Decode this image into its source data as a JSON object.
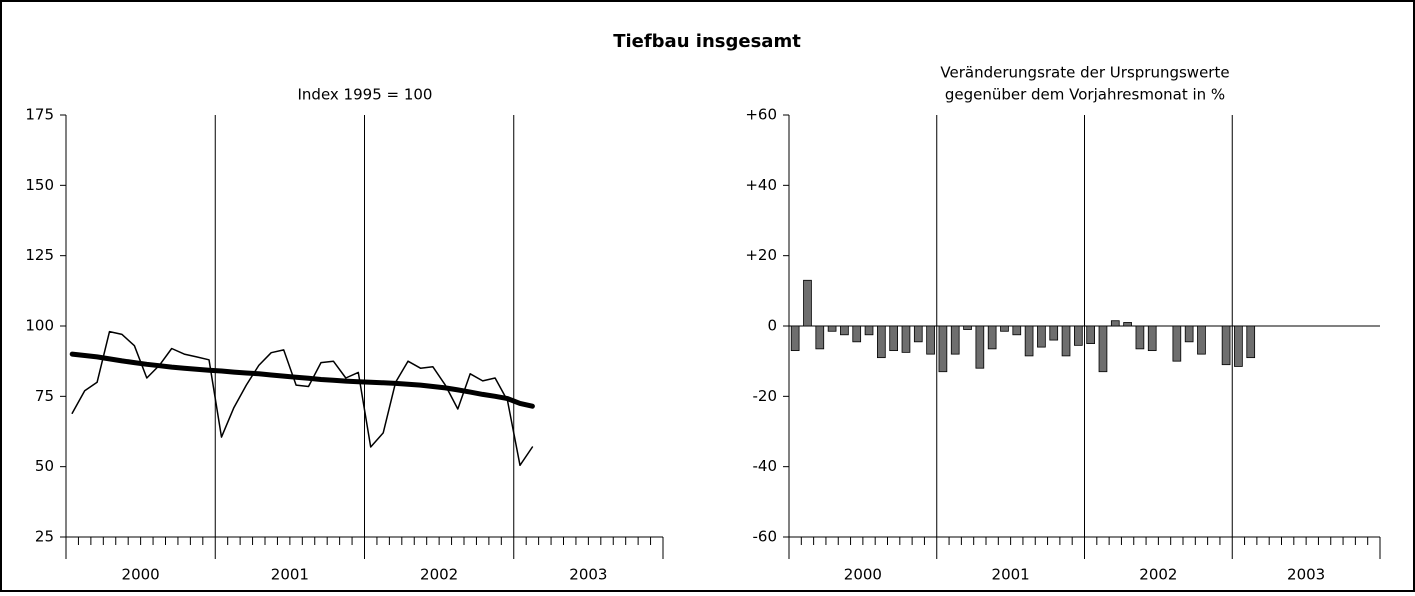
{
  "title": "Tiefbau insgesamt",
  "chart_data": [
    {
      "type": "line",
      "subtitle": [
        "Index 1995 = 100"
      ],
      "year_labels": [
        "2000",
        "2001",
        "2002",
        "2003"
      ],
      "months_per_year": 12,
      "ylim": [
        25,
        175
      ],
      "yticks": [
        25,
        50,
        75,
        100,
        125,
        150,
        175
      ],
      "grid": "years",
      "series": [
        {
          "color": "#000000",
          "width": 1.5,
          "values": [
            69,
            77,
            80,
            98,
            97,
            93,
            81.5,
            86,
            92,
            90,
            89,
            88,
            60.5,
            71,
            79,
            86,
            90.5,
            91.5,
            79,
            78.5,
            87,
            87.5,
            81.5,
            83.5,
            57,
            62,
            80,
            87.5,
            85,
            85.5,
            79,
            70.5,
            83,
            80.5,
            81.5,
            73.5,
            50.5,
            57
          ]
        },
        {
          "color": "#000000",
          "width": 5,
          "values": [
            90,
            89.5,
            89,
            88.3,
            87.6,
            87,
            86.4,
            85.9,
            85.4,
            85,
            84.6,
            84.3,
            84,
            83.6,
            83.3,
            83,
            82.6,
            82.2,
            81.8,
            81.4,
            81,
            80.7,
            80.4,
            80.2,
            80,
            79.8,
            79.6,
            79.3,
            79,
            78.5,
            78,
            77.3,
            76.5,
            75.7,
            75,
            74.2,
            72.5,
            71.5
          ]
        }
      ]
    },
    {
      "type": "bar",
      "subtitle": [
        "Veränderungsrate der Ursprungswerte",
        "gegenüber dem Vorjahresmonat in %"
      ],
      "year_labels": [
        "2000",
        "2001",
        "2002",
        "2003"
      ],
      "months_per_year": 12,
      "ylim": [
        -60,
        60
      ],
      "yticks": [
        -60,
        -40,
        -20,
        0,
        {
          "value": 20,
          "label": "+20"
        },
        {
          "value": 40,
          "label": "+40"
        },
        {
          "value": 60,
          "label": "+60"
        }
      ],
      "grid": "years",
      "color": "#6e6e6e",
      "values": [
        -7,
        13,
        -6.5,
        -1.5,
        -2.5,
        -4.5,
        -2.5,
        -9,
        -7,
        -7.5,
        -4.5,
        -8,
        -13,
        -8,
        -1,
        -12,
        -6.5,
        -1.5,
        -2.5,
        -8.5,
        -6,
        -4,
        -8.5,
        -5.5,
        -5,
        -13,
        1.5,
        1,
        -6.5,
        -7,
        0,
        -10,
        -4.5,
        -8,
        0,
        -11,
        -11.5,
        -9
      ]
    }
  ]
}
